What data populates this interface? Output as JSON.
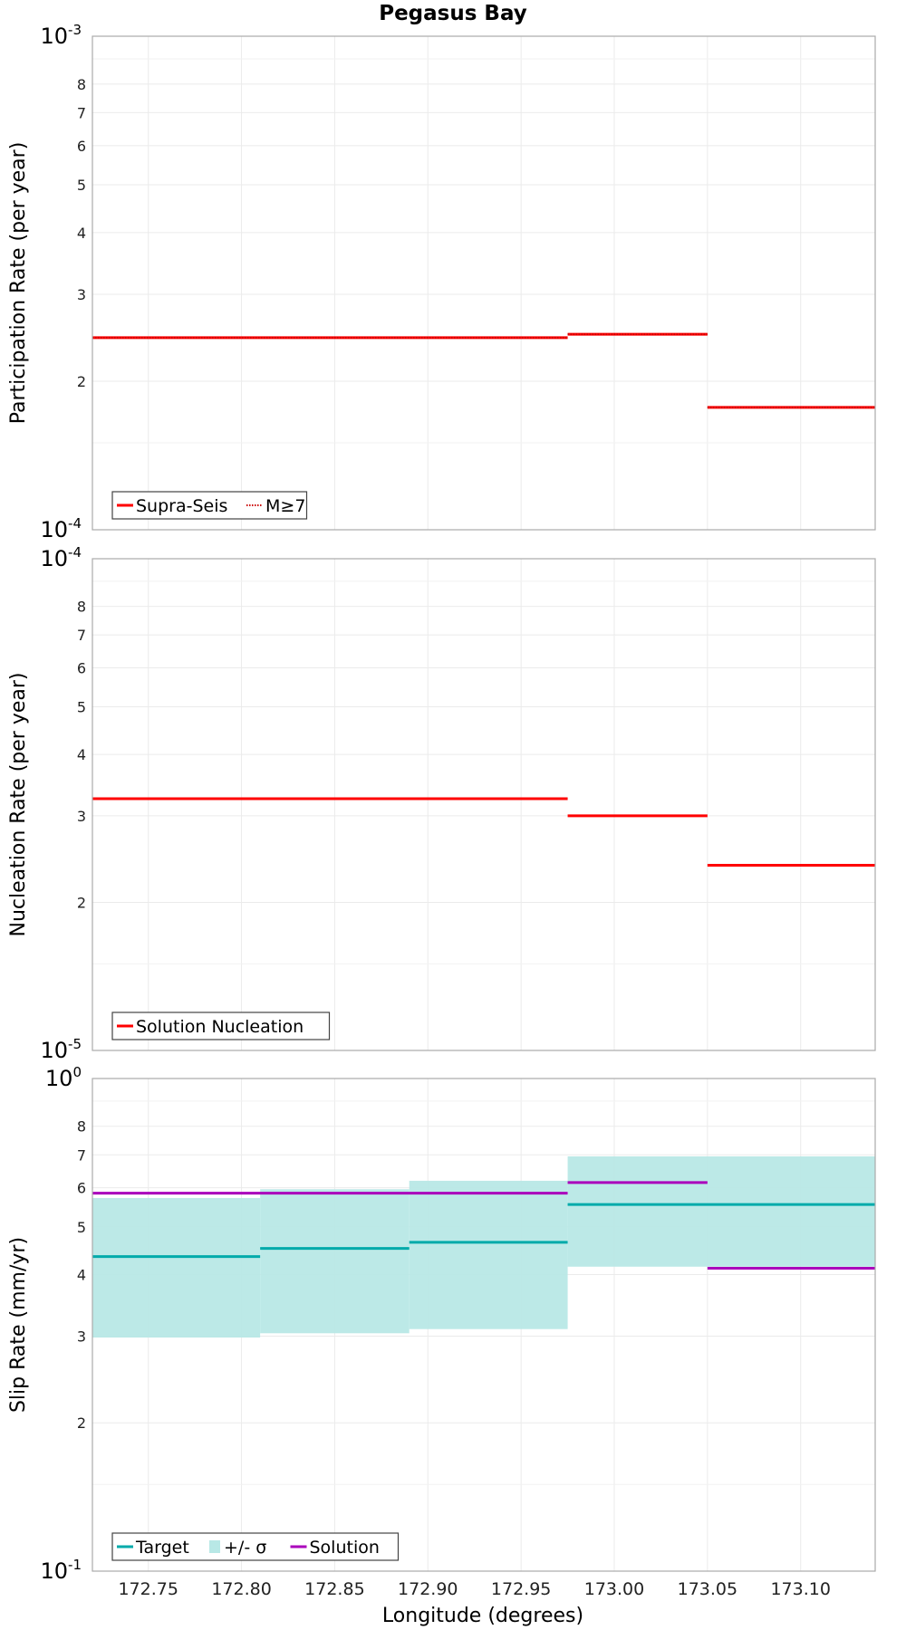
{
  "chart_data": {
    "title": "Pegasus Bay",
    "x": {
      "label": "Longitude (degrees)",
      "lim": [
        172.72,
        173.14
      ],
      "ticks": [
        "172.75",
        "172.80",
        "172.85",
        "172.90",
        "172.95",
        "173.00",
        "173.05",
        "173.10"
      ],
      "tick_values": [
        172.75,
        172.8,
        172.85,
        172.9,
        172.95,
        173.0,
        173.05,
        173.1
      ]
    },
    "panels": [
      {
        "type": "line",
        "ylabel": "Participation Rate (per year)",
        "yscale": "log",
        "ylim": [
          0.0001,
          0.001
        ],
        "ytick_base": "10",
        "ytick_bottom_exp": "-4",
        "ytick_top_exp": "-3",
        "minor_ticks": [
          {
            "label": "2",
            "value": 0.0002
          },
          {
            "label": "3",
            "value": 0.0003
          },
          {
            "label": "4",
            "value": 0.0004
          },
          {
            "label": "5",
            "value": 0.0005
          },
          {
            "label": "6",
            "value": 0.0006
          },
          {
            "label": "7",
            "value": 0.0007
          },
          {
            "label": "8",
            "value": 0.0008
          }
        ],
        "legend": {
          "position": "bottom-left"
        },
        "series": [
          {
            "name": "Supra-Seis",
            "kind": "step",
            "style": "solid",
            "color": "#ff0000",
            "segments": [
              [
                172.72,
                172.975,
                0.000245
              ],
              [
                172.975,
                173.05,
                0.000249
              ],
              [
                173.05,
                173.14,
                0.000177
              ]
            ]
          },
          {
            "name": "M≥7",
            "kind": "step",
            "style": "dotted",
            "color": "#ff0000",
            "segments": [
              [
                172.72,
                172.975,
                0.000245
              ],
              [
                172.975,
                173.05,
                0.000249
              ],
              [
                173.05,
                173.14,
                0.000177
              ]
            ]
          }
        ]
      },
      {
        "type": "line",
        "ylabel": "Nucleation Rate (per year)",
        "yscale": "log",
        "ylim": [
          1e-05,
          0.0001
        ],
        "ytick_base": "10",
        "ytick_bottom_exp": "-5",
        "ytick_top_exp": "-4",
        "minor_ticks": [
          {
            "label": "2",
            "value": 2e-05
          },
          {
            "label": "3",
            "value": 3e-05
          },
          {
            "label": "4",
            "value": 4e-05
          },
          {
            "label": "5",
            "value": 5e-05
          },
          {
            "label": "6",
            "value": 6e-05
          },
          {
            "label": "7",
            "value": 7e-05
          },
          {
            "label": "8",
            "value": 8e-05
          }
        ],
        "legend": {
          "position": "bottom-left"
        },
        "series": [
          {
            "name": "Solution Nucleation",
            "kind": "step",
            "style": "solid",
            "color": "#ff0000",
            "segments": [
              [
                172.72,
                172.975,
                3.25e-05
              ],
              [
                172.975,
                173.05,
                3e-05
              ],
              [
                173.05,
                173.14,
                2.38e-05
              ]
            ]
          }
        ]
      },
      {
        "type": "line",
        "ylabel": "Slip Rate (mm/yr)",
        "yscale": "log",
        "ylim": [
          0.1,
          1
        ],
        "ytick_base": "10",
        "ytick_bottom_exp": "-1",
        "ytick_top_exp": "0",
        "minor_ticks": [
          {
            "label": "2",
            "value": 0.2
          },
          {
            "label": "3",
            "value": 0.3
          },
          {
            "label": "4",
            "value": 0.4
          },
          {
            "label": "5",
            "value": 0.5
          },
          {
            "label": "6",
            "value": 0.6
          },
          {
            "label": "7",
            "value": 0.7
          },
          {
            "label": "8",
            "value": 0.8
          }
        ],
        "legend": {
          "position": "bottom-left"
        },
        "series": [
          {
            "name": "Target",
            "kind": "step",
            "style": "solid",
            "color": "#00aaaa",
            "segments": [
              [
                172.72,
                172.81,
                0.435
              ],
              [
                172.81,
                172.89,
                0.452
              ],
              [
                172.89,
                172.975,
                0.465
              ],
              [
                172.975,
                173.14,
                0.555
              ]
            ]
          },
          {
            "name": "+/- σ",
            "kind": "band",
            "color": "#b8e8e6",
            "segments": [
              [
                172.72,
                172.81,
                0.298,
                0.572
              ],
              [
                172.81,
                172.89,
                0.304,
                0.596
              ],
              [
                172.89,
                172.975,
                0.31,
                0.62
              ],
              [
                172.975,
                173.14,
                0.415,
                0.695
              ]
            ]
          },
          {
            "name": "Solution",
            "kind": "step",
            "style": "solid",
            "color": "#aa00bb",
            "segments": [
              [
                172.72,
                172.975,
                0.585
              ],
              [
                172.975,
                173.05,
                0.615
              ],
              [
                173.05,
                173.14,
                0.412
              ]
            ]
          }
        ]
      }
    ]
  }
}
